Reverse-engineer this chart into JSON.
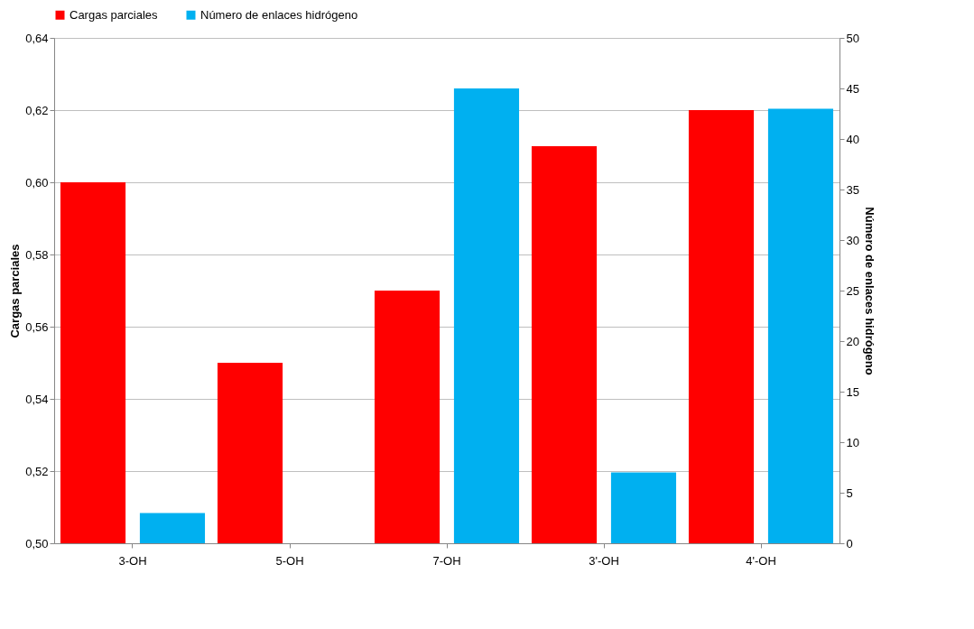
{
  "chart_data": {
    "type": "bar",
    "categories": [
      "3-OH",
      "5-OH",
      "7-OH",
      "3'-OH",
      "4'-OH"
    ],
    "series": [
      {
        "name": "Cargas parciales",
        "color": "#ff0000",
        "values": [
          0.6,
          0.55,
          0.57,
          0.61,
          0.62
        ]
      },
      {
        "name": "Número de enlaces hidrógeno",
        "color": "#00b0f0",
        "axis": "y2",
        "values": [
          3,
          0,
          45,
          7,
          43
        ]
      }
    ],
    "ylabel": "Cargas parciales",
    "y2label": "Número de enlaces   hidrógeno",
    "ylim": [
      0.5,
      0.64
    ],
    "yticks": [
      {
        "value": 0.5,
        "label": "0,50"
      },
      {
        "value": 0.52,
        "label": "0,52"
      },
      {
        "value": 0.54,
        "label": "0,54"
      },
      {
        "value": 0.56,
        "label": "0,56"
      },
      {
        "value": 0.58,
        "label": "0,58"
      },
      {
        "value": 0.6,
        "label": "0,60"
      },
      {
        "value": 0.62,
        "label": "0,62"
      },
      {
        "value": 0.64,
        "label": "0,64"
      }
    ],
    "y2lim": [
      0,
      50
    ],
    "y2ticks": [
      0,
      5,
      10,
      15,
      20,
      25,
      30,
      35,
      40,
      45,
      50
    ],
    "grid": "y",
    "legend": "top"
  }
}
